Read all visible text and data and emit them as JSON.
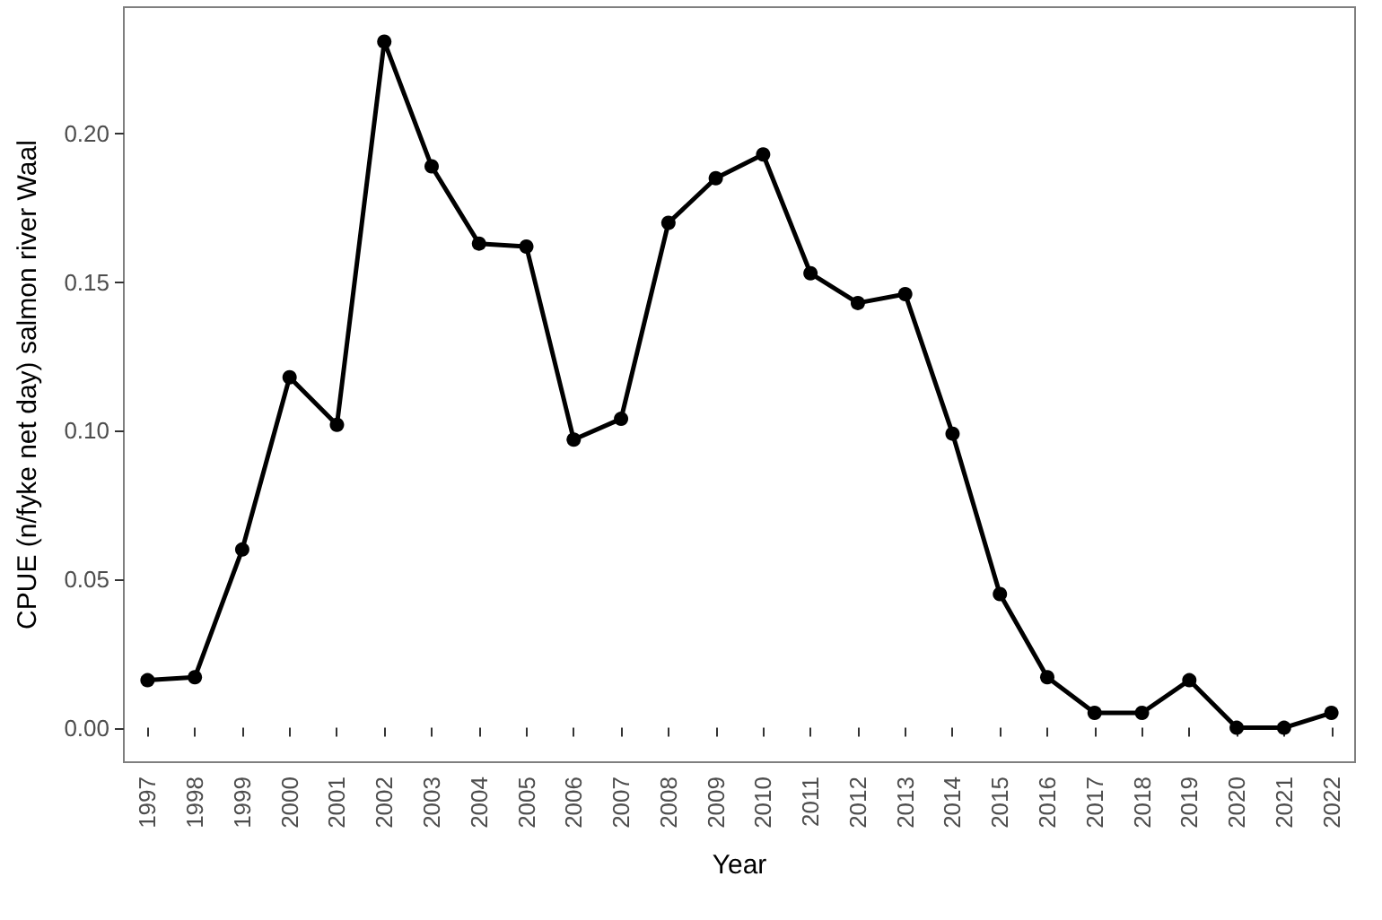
{
  "chart_data": {
    "type": "line",
    "xlabel": "Year",
    "ylabel": "CPUE (n/fyke net day) salmon river Waal",
    "categories": [
      "1997",
      "1998",
      "1999",
      "2000",
      "2001",
      "2002",
      "2003",
      "2004",
      "2005",
      "2006",
      "2007",
      "2008",
      "2009",
      "2010",
      "2011",
      "2012",
      "2013",
      "2014",
      "2015",
      "2016",
      "2017",
      "2018",
      "2019",
      "2020",
      "2021",
      "2022"
    ],
    "series": [
      {
        "color": "#000000",
        "values": [
          0.016,
          0.017,
          0.06,
          0.118,
          0.102,
          0.231,
          0.189,
          0.163,
          0.162,
          0.097,
          0.104,
          0.17,
          0.185,
          0.193,
          0.153,
          0.143,
          0.146,
          0.099,
          0.045,
          0.017,
          0.005,
          0.005,
          0.016,
          0,
          0,
          0.005
        ]
      }
    ],
    "ylim": [
      -0.0116,
      0.2426
    ],
    "yticks": [
      {
        "value": 0,
        "label": "0.00"
      },
      {
        "value": 0.05,
        "label": "0.05"
      },
      {
        "value": 0.1,
        "label": "0.10"
      },
      {
        "value": 0.15,
        "label": "0.15"
      },
      {
        "value": 0.2,
        "label": "0.20"
      }
    ],
    "grid": false,
    "marker": "circle",
    "line_style": "solid"
  }
}
